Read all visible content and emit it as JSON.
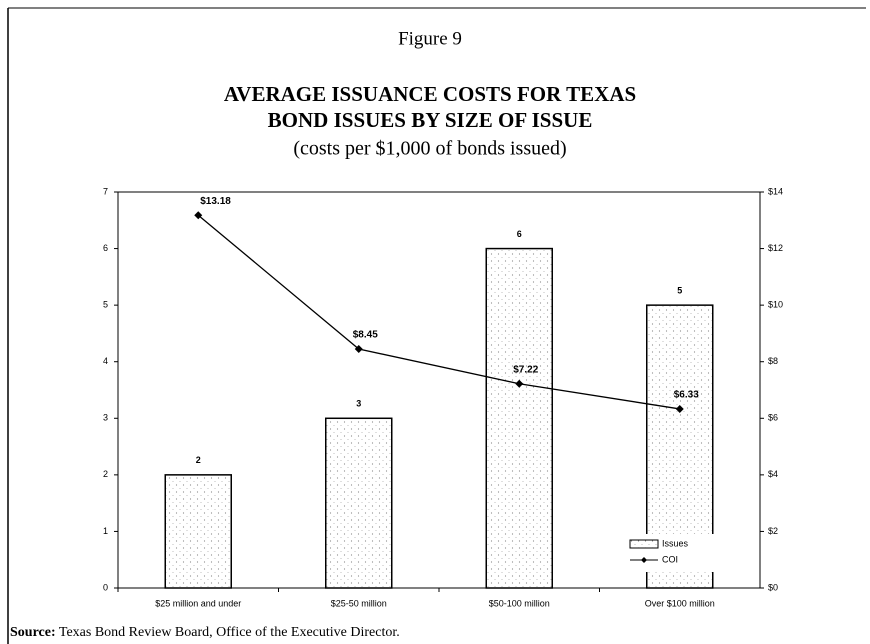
{
  "chart_data": {
    "type": "bar",
    "figure_label": "Figure 9",
    "title": [
      "AVERAGE ISSUANCE COSTS FOR TEXAS",
      "BOND ISSUES BY SIZE OF ISSUE"
    ],
    "subtitle": "(costs per $1,000 of bonds issued)",
    "categories": [
      "$25 million and under",
      "$25-50 million",
      "$50-100 million",
      "Over $100 million"
    ],
    "series": [
      {
        "name": "Issues",
        "type": "bar",
        "color": "#ffffff",
        "values": [
          2,
          3,
          6,
          5
        ]
      },
      {
        "name": "COI",
        "type": "line",
        "axis": "y2",
        "color": "#000000",
        "values": [
          13.18,
          8.45,
          7.22,
          6.33
        ],
        "value_labels": [
          "$13.18",
          "$8.45",
          "$7.22",
          "$6.33"
        ]
      }
    ],
    "ylim": [
      0,
      7
    ],
    "yticks": [
      0,
      1,
      2,
      3,
      4,
      5,
      6,
      7
    ],
    "y2lim": [
      0,
      14
    ],
    "y2ticks": [
      {
        "value": 0,
        "label": "$0"
      },
      {
        "value": 2,
        "label": "$2"
      },
      {
        "value": 4,
        "label": "$4"
      },
      {
        "value": 6,
        "label": "$6"
      },
      {
        "value": 8,
        "label": "$8"
      },
      {
        "value": 10,
        "label": "$10"
      },
      {
        "value": 12,
        "label": "$12"
      },
      {
        "value": 14,
        "label": "$14"
      }
    ],
    "legend": "lower right",
    "grid": false,
    "source_label": "Source:",
    "source": "Texas Bond Review Board, Office of the Executive Director."
  }
}
